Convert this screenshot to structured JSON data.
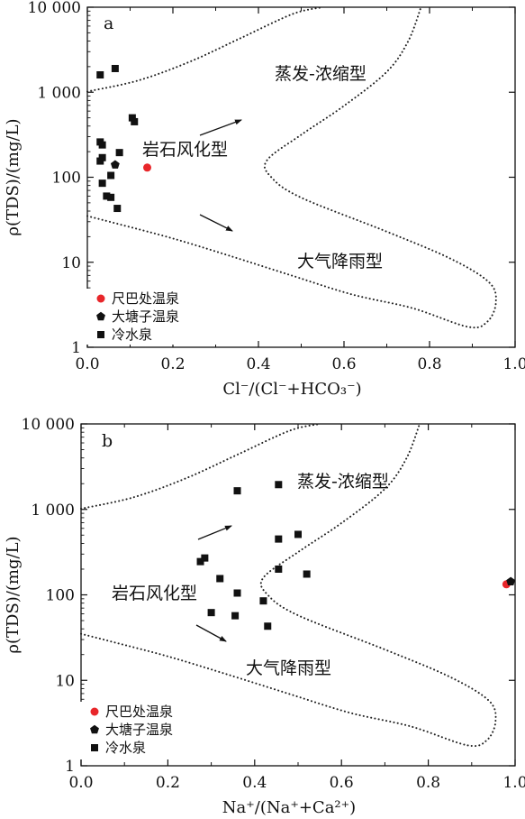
{
  "chart_data": [
    {
      "type": "scatter",
      "panel_label": "a",
      "xlabel": "Cl⁻/(Cl⁻+HCO₃⁻)",
      "ylabel": "ρ(TDS)/(mg/L)",
      "xlim": [
        0,
        1.0
      ],
      "ylim": [
        1,
        10000
      ],
      "yscale": "log",
      "xticks": [
        "0.0",
        "0.2",
        "0.4",
        "0.6",
        "0.8",
        "1.0"
      ],
      "yticks": [
        "1",
        "10",
        "100",
        "1 000",
        "10 000"
      ],
      "regions": [
        "蒸发-浓缩型",
        "岩石风化型",
        "大气降雨型"
      ],
      "legend": {
        "position": "bottom-left",
        "entries": [
          "尺巴处温泉",
          "大塘子温泉",
          "冷水泉"
        ]
      },
      "series": [
        {
          "name": "尺巴处温泉",
          "marker": "circle",
          "color": "#e8262a",
          "points": [
            [
              0.14,
              130
            ]
          ]
        },
        {
          "name": "大塘子温泉",
          "marker": "pentagon",
          "color": "#111111",
          "points": [
            [
              0.065,
              140
            ]
          ]
        },
        {
          "name": "冷水泉",
          "marker": "square",
          "color": "#111111",
          "points": [
            [
              0.03,
              1600
            ],
            [
              0.065,
              1900
            ],
            [
              0.03,
              260
            ],
            [
              0.035,
              240
            ],
            [
              0.035,
              170
            ],
            [
              0.03,
              155
            ],
            [
              0.035,
              85
            ],
            [
              0.045,
              60
            ],
            [
              0.055,
              58
            ],
            [
              0.055,
              105
            ],
            [
              0.07,
              43
            ],
            [
              0.105,
              500
            ],
            [
              0.11,
              450
            ],
            [
              0.075,
              195
            ]
          ]
        }
      ]
    },
    {
      "type": "scatter",
      "panel_label": "b",
      "xlabel": "Na⁺/(Na⁺+Ca²⁺)",
      "ylabel": "ρ(TDS)/(mg/L)",
      "xlim": [
        0,
        1.0
      ],
      "ylim": [
        1,
        10000
      ],
      "yscale": "log",
      "xticks": [
        "0.0",
        "0.2",
        "0.4",
        "0.6",
        "0.8",
        "1.0"
      ],
      "yticks": [
        "1",
        "10",
        "100",
        "1 000",
        "10 000"
      ],
      "regions": [
        "蒸发-浓缩型",
        "岩石风化型",
        "大气降雨型"
      ],
      "legend": {
        "position": "bottom-left",
        "entries": [
          "尺巴处温泉",
          "大塘子温泉",
          "冷水泉"
        ]
      },
      "series": [
        {
          "name": "尺巴处温泉",
          "marker": "circle",
          "color": "#e8262a",
          "points": [
            [
              0.98,
              133
            ]
          ]
        },
        {
          "name": "大塘子温泉",
          "marker": "pentagon",
          "color": "#111111",
          "points": [
            [
              0.99,
              143
            ]
          ]
        },
        {
          "name": "冷水泉",
          "marker": "square",
          "color": "#111111",
          "points": [
            [
              0.36,
              1650
            ],
            [
              0.455,
              1950
            ],
            [
              0.275,
              245
            ],
            [
              0.285,
              270
            ],
            [
              0.32,
              155
            ],
            [
              0.36,
              105
            ],
            [
              0.3,
              62
            ],
            [
              0.355,
              57
            ],
            [
              0.42,
              85
            ],
            [
              0.43,
              43
            ],
            [
              0.455,
              450
            ],
            [
              0.5,
              510
            ],
            [
              0.455,
              200
            ],
            [
              0.52,
              175
            ]
          ]
        }
      ]
    }
  ]
}
